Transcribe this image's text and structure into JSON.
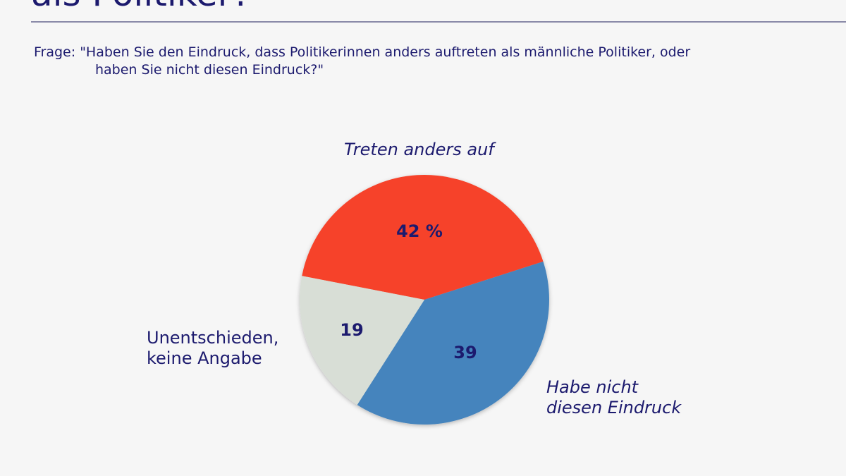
{
  "title": "als Politiker?",
  "question": {
    "line1": "Frage: \"Haben Sie den Eindruck, dass Politikerinnen anders auftreten als männliche Politiker, oder",
    "line2": "haben Sie nicht diesen Eindruck?\""
  },
  "chart_data": {
    "type": "pie",
    "unit": "%",
    "slices": [
      {
        "label": "Treten anders auf",
        "value": 42,
        "value_label": "42 %",
        "color": "#f6432a"
      },
      {
        "label": "Habe nicht diesen Eindruck",
        "label_line1": "Habe nicht",
        "label_line2": "diesen Eindruck",
        "value": 39,
        "value_label": "39",
        "color": "#4584bd"
      },
      {
        "label": "Unentschieden, keine Angabe",
        "label_line1": "Unentschieden,",
        "label_line2": "keine Angabe",
        "value": 19,
        "value_label": "19",
        "color": "#d8ded6"
      }
    ]
  }
}
